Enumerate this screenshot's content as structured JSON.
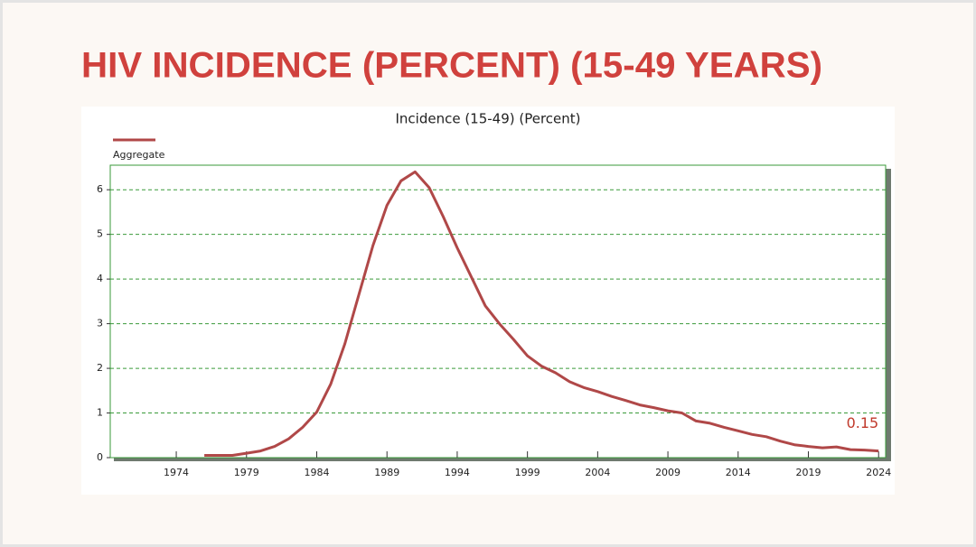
{
  "page_title": "HIV INCIDENCE (PERCENT) (15-49 YEARS)",
  "chart_data": {
    "type": "line",
    "title": "Incidence (15-49) (Percent)",
    "x": [
      1976,
      1977,
      1978,
      1979,
      1980,
      1981,
      1982,
      1983,
      1984,
      1985,
      1986,
      1987,
      1988,
      1989,
      1990,
      1991,
      1992,
      1993,
      1994,
      1995,
      1996,
      1997,
      1998,
      1999,
      2000,
      2001,
      2002,
      2003,
      2004,
      2005,
      2006,
      2007,
      2008,
      2009,
      2010,
      2011,
      2012,
      2013,
      2014,
      2015,
      2016,
      2017,
      2018,
      2019,
      2020,
      2021,
      2022,
      2023,
      2024
    ],
    "series": [
      {
        "name": "Aggregate",
        "color": "#b04848",
        "values": [
          0.05,
          0.05,
          0.05,
          0.1,
          0.15,
          0.25,
          0.42,
          0.68,
          1.02,
          1.65,
          2.55,
          3.65,
          4.75,
          5.65,
          6.2,
          6.4,
          6.05,
          5.4,
          4.7,
          4.05,
          3.4,
          3.0,
          2.65,
          2.28,
          2.05,
          1.9,
          1.7,
          1.57,
          1.48,
          1.37,
          1.28,
          1.18,
          1.12,
          1.05,
          1.0,
          0.82,
          0.77,
          0.68,
          0.6,
          0.52,
          0.47,
          0.37,
          0.29,
          0.25,
          0.22,
          0.24,
          0.18,
          0.17,
          0.15
        ]
      }
    ],
    "annotation": "0.15",
    "xlim": [
      1969.3,
      2024.5
    ],
    "xticks": [
      1974,
      1979,
      1984,
      1989,
      1994,
      1999,
      2004,
      2009,
      2014,
      2019,
      2024
    ],
    "ylim": [
      0,
      6.55
    ],
    "yticks": [
      0,
      1,
      2,
      3,
      4,
      5,
      6
    ],
    "grid": true
  }
}
